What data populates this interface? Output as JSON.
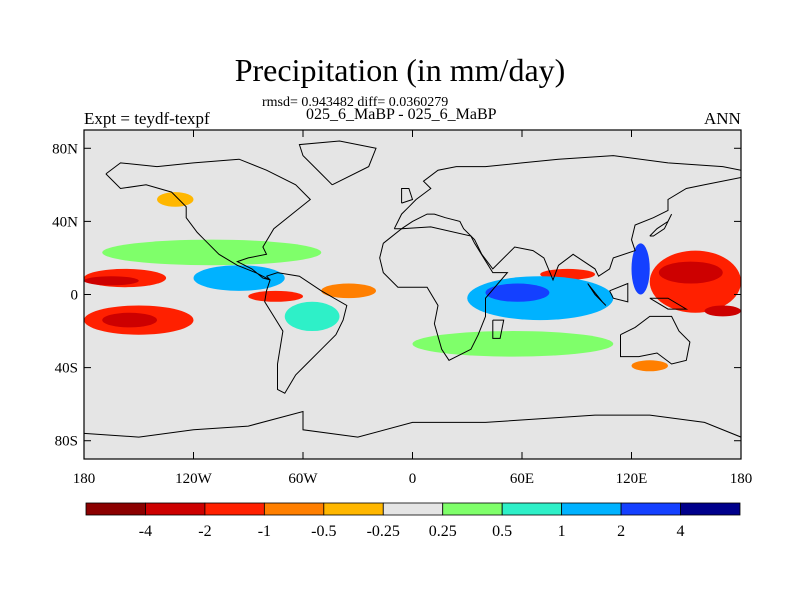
{
  "title": "Precipitation (in mm/day)",
  "stats_line": "rmsd= 0.943482 diff= 0.0360279",
  "cases_line": "025_6_MaBP - 025_6_MaBP",
  "experiment_label": "Expt = teydf-texpf",
  "season_label": "ANN",
  "colors": {
    "land_outline": "#000000",
    "neutral_fill": "#e5e5e5"
  },
  "chart_data": {
    "type": "heatmap",
    "title": "Precipitation (in mm/day)",
    "projection": "cylindrical equidistant",
    "units": "mm/day",
    "x_ticks": [
      "180",
      "120W",
      "60W",
      "0",
      "60E",
      "120E",
      "180"
    ],
    "x_tick_values": [
      -180,
      -120,
      -60,
      0,
      60,
      120,
      180
    ],
    "y_ticks": [
      "80N",
      "40N",
      "0",
      "40S",
      "80S"
    ],
    "y_tick_values": [
      80,
      40,
      0,
      -40,
      -80
    ],
    "xlim": [
      -180,
      180
    ],
    "ylim": [
      -90,
      90
    ],
    "colorbar": {
      "tick_labels": [
        "-4",
        "-2",
        "-1",
        "-0.5",
        "-0.25",
        "0.25",
        "0.5",
        "1",
        "2",
        "4"
      ],
      "bins": [
        {
          "color": "#8b0000",
          "range": "< -4"
        },
        {
          "color": "#cd0000",
          "range": "-4 to -2"
        },
        {
          "color": "#ff2000",
          "range": "-2 to -1"
        },
        {
          "color": "#ff7f00",
          "range": "-1 to -0.5"
        },
        {
          "color": "#ffb700",
          "range": "-0.5 to -0.25"
        },
        {
          "color": "#e5e5e5",
          "range": "-0.25 to 0.25"
        },
        {
          "color": "#7fff6a",
          "range": "0.25 to 0.5"
        },
        {
          "color": "#2ef0c8",
          "range": "0.5 to 1"
        },
        {
          "color": "#00b2ff",
          "range": "1 to 2"
        },
        {
          "color": "#1440ff",
          "range": "2 to 4"
        },
        {
          "color": "#00008b",
          "range": "> 4"
        }
      ]
    },
    "regions": [
      {
        "level": "-2 to -1",
        "lon": [
          -180,
          -135
        ],
        "lat": [
          14,
          4
        ]
      },
      {
        "level": "-4 to -2",
        "lon": [
          -180,
          -150
        ],
        "lat": [
          10,
          5
        ]
      },
      {
        "level": "-2 to -1",
        "lon": [
          -180,
          -120
        ],
        "lat": [
          -6,
          -22
        ]
      },
      {
        "level": "-4 to -2",
        "lon": [
          -170,
          -140
        ],
        "lat": [
          -10,
          -18
        ]
      },
      {
        "level": "-2 to -1",
        "lon": [
          -90,
          -60
        ],
        "lat": [
          2,
          -4
        ]
      },
      {
        "level": "-1 to -0.5",
        "lon": [
          -50,
          -20
        ],
        "lat": [
          6,
          -2
        ]
      },
      {
        "level": "-2 to -1",
        "lon": [
          70,
          100
        ],
        "lat": [
          14,
          8
        ]
      },
      {
        "level": "-2 to -1",
        "lon": [
          130,
          180
        ],
        "lat": [
          24,
          -10
        ]
      },
      {
        "level": "-4 to -2",
        "lon": [
          135,
          170
        ],
        "lat": [
          18,
          6
        ]
      },
      {
        "level": "-4 to -2",
        "lon": [
          160,
          180
        ],
        "lat": [
          -6,
          -12
        ]
      },
      {
        "level": "1 to 2",
        "lon": [
          -120,
          -70
        ],
        "lat": [
          16,
          2
        ]
      },
      {
        "level": "1 to 2",
        "lon": [
          30,
          110
        ],
        "lat": [
          10,
          -14
        ]
      },
      {
        "level": "2 to 4",
        "lon": [
          40,
          75
        ],
        "lat": [
          6,
          -4
        ]
      },
      {
        "level": "2 to 4",
        "lon": [
          120,
          130
        ],
        "lat": [
          28,
          0
        ]
      },
      {
        "level": "0.5 to 1",
        "lon": [
          -70,
          -40
        ],
        "lat": [
          -4,
          -20
        ]
      },
      {
        "level": "0.25 to 0.5",
        "lon": [
          0,
          110
        ],
        "lat": [
          -20,
          -34
        ]
      },
      {
        "level": "0.25 to 0.5",
        "lon": [
          -170,
          -50
        ],
        "lat": [
          30,
          16
        ]
      },
      {
        "level": "-0.5 to -0.25",
        "lon": [
          -140,
          -120
        ],
        "lat": [
          56,
          48
        ]
      },
      {
        "level": "-1 to -0.5",
        "lon": [
          120,
          140
        ],
        "lat": [
          -36,
          -42
        ]
      }
    ]
  }
}
